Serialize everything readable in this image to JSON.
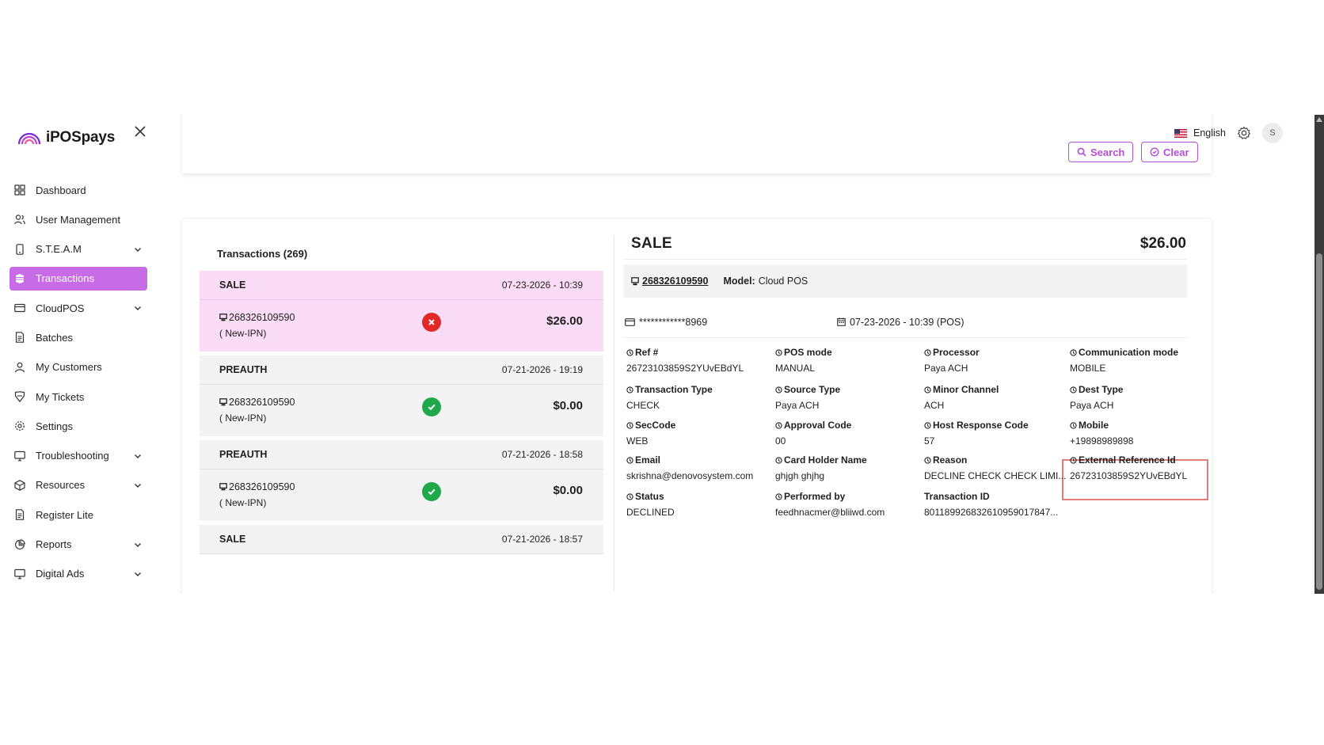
{
  "brand": {
    "name": "iPOSpays"
  },
  "sidebar": {
    "items": [
      {
        "label": "Dashboard",
        "icon": "grid-icon",
        "expandable": false,
        "active": false
      },
      {
        "label": "User Management",
        "icon": "users-icon",
        "expandable": false,
        "active": false
      },
      {
        "label": "S.T.E.A.M",
        "icon": "device-icon",
        "expandable": true,
        "active": false
      },
      {
        "label": "Transactions",
        "icon": "transactions-icon",
        "expandable": false,
        "active": true
      },
      {
        "label": "CloudPOS",
        "icon": "card-icon",
        "expandable": true,
        "active": false
      },
      {
        "label": "Batches",
        "icon": "document-icon",
        "expandable": false,
        "active": false
      },
      {
        "label": "My Customers",
        "icon": "user-icon",
        "expandable": false,
        "active": false
      },
      {
        "label": "My Tickets",
        "icon": "ticket-icon",
        "expandable": false,
        "active": false
      },
      {
        "label": "Settings",
        "icon": "gear-icon",
        "expandable": false,
        "active": false
      },
      {
        "label": "Troubleshooting",
        "icon": "monitor-icon",
        "expandable": true,
        "active": false
      },
      {
        "label": "Resources",
        "icon": "box-icon",
        "expandable": true,
        "active": false
      },
      {
        "label": "Register Lite",
        "icon": "document-icon",
        "expandable": false,
        "active": false
      },
      {
        "label": "Reports",
        "icon": "pie-chart-icon",
        "expandable": true,
        "active": false
      },
      {
        "label": "Digital Ads",
        "icon": "monitor-icon",
        "expandable": true,
        "active": false
      }
    ]
  },
  "topbar": {
    "language": "English",
    "avatar_initial": "S"
  },
  "filters": {
    "search_label": "Search",
    "clear_label": "Clear"
  },
  "transactions": {
    "title": "Transactions (269)",
    "items": [
      {
        "type": "SALE",
        "datetime": "07-23-2026 - 10:39",
        "id": "268326109590",
        "sub": "( New-IPN)",
        "status": "failed",
        "amount": "$26.00",
        "selected": true
      },
      {
        "type": "PREAUTH",
        "datetime": "07-21-2026 - 19:19",
        "id": "268326109590",
        "sub": "( New-IPN)",
        "status": "success",
        "amount": "$0.00",
        "selected": false
      },
      {
        "type": "PREAUTH",
        "datetime": "07-21-2026 - 18:58",
        "id": "268326109590",
        "sub": "( New-IPN)",
        "status": "success",
        "amount": "$0.00",
        "selected": false
      },
      {
        "type": "SALE",
        "datetime": "07-21-2026 - 18:57",
        "id": "",
        "sub": "",
        "status": "",
        "amount": "",
        "selected": false
      }
    ]
  },
  "detail": {
    "title": "SALE",
    "amount": "$26.00",
    "terminal_id": "268326109590",
    "model_label": "Model:",
    "model_value": "Cloud POS",
    "card_masked": "************8969",
    "datetime": "07-23-2026 - 10:39 (POS)",
    "fields": [
      {
        "label": "Ref #",
        "value": "26723103859S2YUvEBdYL"
      },
      {
        "label": "POS mode",
        "value": "MANUAL"
      },
      {
        "label": "Processor",
        "value": "Paya ACH"
      },
      {
        "label": "Communication mode",
        "value": "MOBILE"
      },
      {
        "label": "Transaction Type",
        "value": "CHECK"
      },
      {
        "label": "Source Type",
        "value": "Paya ACH"
      },
      {
        "label": "Minor Channel",
        "value": "ACH"
      },
      {
        "label": "Dest Type",
        "value": "Paya ACH"
      },
      {
        "label": "SecCode",
        "value": "WEB"
      },
      {
        "label": "Approval Code",
        "value": "00"
      },
      {
        "label": "Host Response Code",
        "value": "57"
      },
      {
        "label": "Mobile",
        "value": "+19898989898"
      },
      {
        "label": "Email",
        "value": "skrishna@denovosystem.com"
      },
      {
        "label": "Card Holder Name",
        "value": "ghjgh ghjhg"
      },
      {
        "label": "Reason",
        "value": "DECLINE CHECK CHECK LIMI..."
      },
      {
        "label": "External Reference Id",
        "value": "26723103859S2YUvEBdYL"
      },
      {
        "label": "Status",
        "value": "DECLINED"
      },
      {
        "label": "Performed by",
        "value": "feedhnacmer@bliiwd.com"
      },
      {
        "label": "Transaction ID",
        "value": "80118992683261095901784​7..."
      }
    ]
  },
  "colors": {
    "accent": "#c86be6",
    "accent_border": "#b44fd6",
    "selected_row": "#fbdcf6",
    "success": "#1fa94a",
    "fail": "#e02828",
    "highlight": "#e07c7c"
  }
}
